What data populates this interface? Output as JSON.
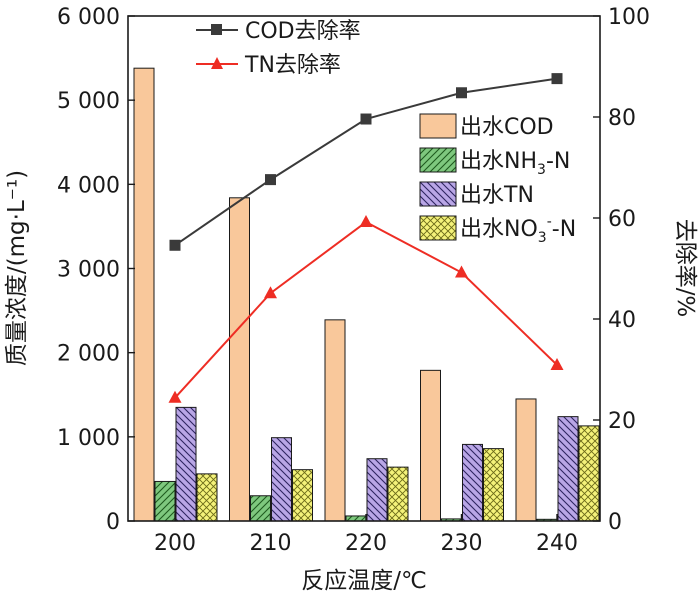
{
  "chart_data": {
    "type": "bar",
    "categories": [
      "200",
      "210",
      "220",
      "230",
      "240"
    ],
    "xlabel": "反应温度/℃",
    "ylabel_left": "质量浓度/(mg·L⁻¹)",
    "ylabel_right": "去除率/%",
    "ylim_left": [
      0,
      6000
    ],
    "ylim_right": [
      0,
      100
    ],
    "y_ticks_left": [
      0,
      1000,
      2000,
      3000,
      4000,
      5000,
      6000
    ],
    "y_tick_labels_left": [
      "0",
      "1 000",
      "2 000",
      "3 000",
      "4 000",
      "5 000",
      "6 000"
    ],
    "y_ticks_right": [
      0,
      20,
      40,
      60,
      80,
      100
    ],
    "y_tick_labels_right": [
      "0",
      "20",
      "40",
      "60",
      "80",
      "100"
    ],
    "bar_series": [
      {
        "name": "出水COD",
        "name_main": "出水COD",
        "sub": "",
        "sup": "",
        "suffix": "",
        "values": [
          5380,
          3840,
          2390,
          1790,
          1450
        ],
        "color": "#f9c89b",
        "pattern": "none"
      },
      {
        "name": "出水NH3-N",
        "name_main": "出水NH",
        "sub": "3",
        "sup": "",
        "suffix": "-N",
        "values": [
          470,
          300,
          60,
          25,
          20
        ],
        "color": "#7ec87e",
        "pattern": "diag-up"
      },
      {
        "name": "出水TN",
        "name_main": "出水TN",
        "sub": "",
        "sup": "",
        "suffix": "",
        "values": [
          1350,
          990,
          740,
          910,
          1240
        ],
        "color": "#b9a6e6",
        "pattern": "diag-down"
      },
      {
        "name": "出水NO3--N",
        "name_main": "出水NO",
        "sub": "3",
        "sup": "-",
        "suffix": "-N",
        "values": [
          560,
          610,
          640,
          860,
          1130
        ],
        "color": "#f4f27a",
        "pattern": "cross"
      }
    ],
    "line_series": [
      {
        "name": "COD去除率",
        "values": [
          54.6,
          67.6,
          79.6,
          84.8,
          87.6
        ],
        "color": "#3a3a3a",
        "marker": "square"
      },
      {
        "name": "TN去除率",
        "values": [
          24.4,
          45.1,
          59.2,
          49.2,
          30.9
        ],
        "color": "#ee2d24",
        "marker": "triangle"
      }
    ]
  }
}
